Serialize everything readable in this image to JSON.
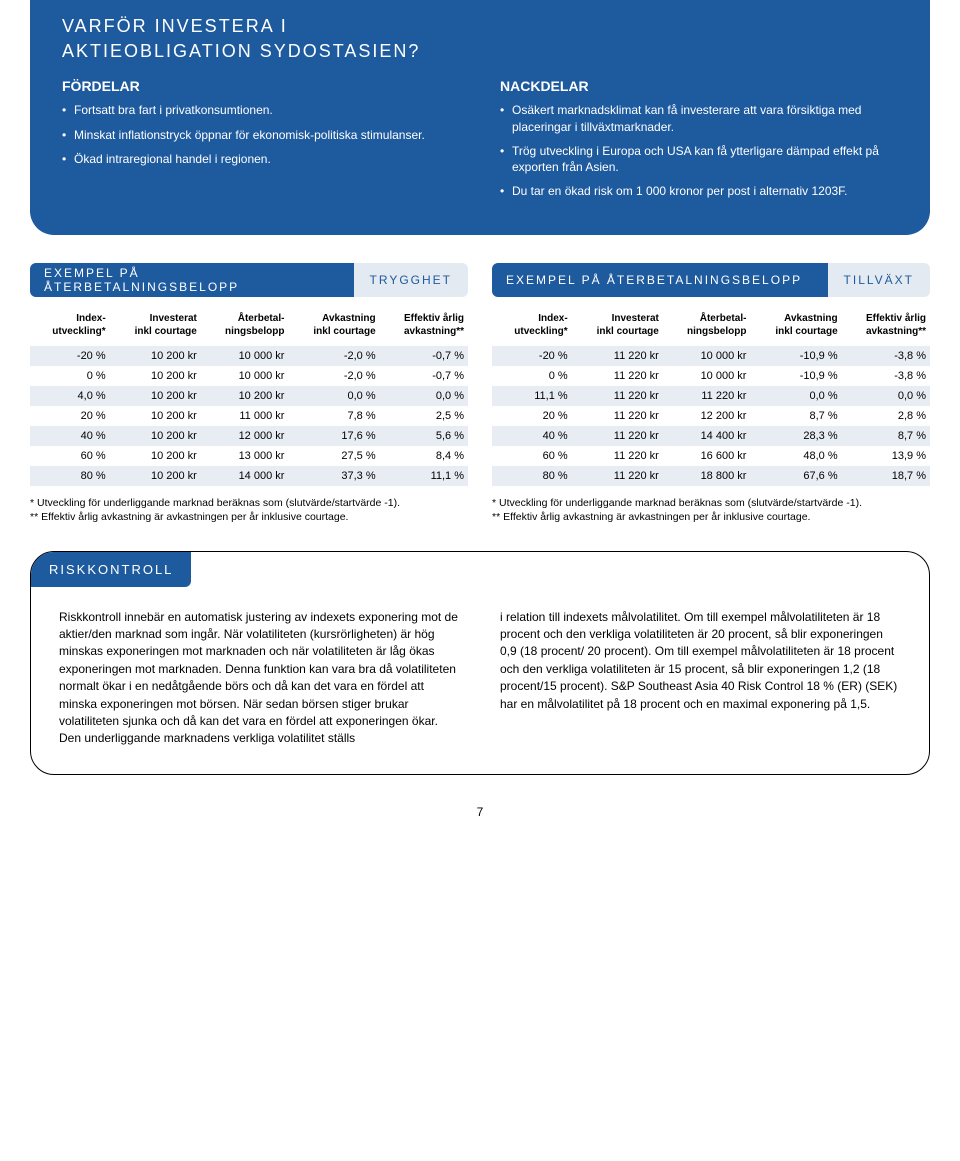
{
  "colors": {
    "brand_blue": "#1e5a9e",
    "light_blue": "#e3eaf1",
    "row_stripe": "#e8edf3",
    "text": "#000000",
    "bg": "#ffffff"
  },
  "hero": {
    "title_line1": "VARFÖR INVESTERA I",
    "title_line2": "AKTIEOBLIGATION SYDOSTASIEN?",
    "fordelar": {
      "heading": "FÖRDELAR",
      "items": [
        "Fortsatt bra fart i privatkonsumtionen.",
        "Minskat inflationstryck öppnar för ekonomisk-politiska stimulanser.",
        "Ökad intraregional handel i regionen."
      ]
    },
    "nackdelar": {
      "heading": "NACKDELAR",
      "items": [
        "Osäkert marknadsklimat kan få investerare att vara försiktiga med placeringar i tillväxtmarknader.",
        "Trög utveckling i Europa och USA kan få ytterligare dämpad effekt på exporten från Asien.",
        "Du tar en ökad risk om 1 000 kronor per post i alternativ 1203F."
      ]
    }
  },
  "tables": {
    "header_title": "EXEMPEL PÅ ÅTERBETALNINGSBELOPP",
    "tag_trygghet": "TRYGGHET",
    "tag_tillvaxt": "TILLVÄXT",
    "columns": [
      {
        "l1": "Index-",
        "l2": "utveckling*"
      },
      {
        "l1": "Investerat",
        "l2": "inkl courtage"
      },
      {
        "l1": "Återbetal-",
        "l2": "ningsbelopp"
      },
      {
        "l1": "Avkastning",
        "l2": "inkl courtage"
      },
      {
        "l1": "Effektiv årlig",
        "l2": "avkastning**"
      }
    ],
    "trygghet_rows": [
      [
        "-20 %",
        "10 200 kr",
        "10 000 kr",
        "-2,0 %",
        "-0,7 %"
      ],
      [
        "0 %",
        "10 200 kr",
        "10 000 kr",
        "-2,0 %",
        "-0,7 %"
      ],
      [
        "4,0 %",
        "10 200 kr",
        "10 200 kr",
        "0,0 %",
        "0,0 %"
      ],
      [
        "20 %",
        "10 200 kr",
        "11 000 kr",
        "7,8 %",
        "2,5 %"
      ],
      [
        "40 %",
        "10 200 kr",
        "12 000 kr",
        "17,6 %",
        "5,6 %"
      ],
      [
        "60 %",
        "10 200 kr",
        "13 000 kr",
        "27,5 %",
        "8,4 %"
      ],
      [
        "80 %",
        "10 200 kr",
        "14 000 kr",
        "37,3 %",
        "11,1 %"
      ]
    ],
    "tillvaxt_rows": [
      [
        "-20 %",
        "11 220 kr",
        "10 000 kr",
        "-10,9 %",
        "-3,8 %"
      ],
      [
        "0 %",
        "11 220 kr",
        "10 000 kr",
        "-10,9 %",
        "-3,8 %"
      ],
      [
        "11,1 %",
        "11 220 kr",
        "11 220 kr",
        "0,0 %",
        "0,0 %"
      ],
      [
        "20 %",
        "11 220 kr",
        "12 200 kr",
        "8,7 %",
        "2,8 %"
      ],
      [
        "40 %",
        "11 220 kr",
        "14 400 kr",
        "28,3 %",
        "8,7 %"
      ],
      [
        "60 %",
        "11 220 kr",
        "16 600 kr",
        "48,0 %",
        "13,9 %"
      ],
      [
        "80 %",
        "11 220 kr",
        "18 800 kr",
        "67,6 %",
        "18,7 %"
      ]
    ],
    "footnote1": "*  Utveckling för underliggande marknad beräknas som (slutvärde/startvärde -1).",
    "footnote2": "** Effektiv årlig avkastning är avkastningen per år inklusive courtage."
  },
  "risk": {
    "title": "RISKKONTROLL",
    "col1": "Riskkontroll innebär en automatisk justering av indexets exponering mot de aktier/den marknad som ingår. När volatiliteten (kursrörligheten) är hög minskas exponeringen mot marknaden och när volatiliteten är låg ökas exponeringen mot marknaden. Denna funktion kan vara bra då volatiliteten normalt ökar i en nedåtgående börs och då kan det vara en fördel att minska exponeringen mot börsen. När sedan börsen stiger brukar volatiliteten sjunka och då kan det vara en fördel att exponeringen ökar. Den underliggande marknadens verkliga volatilitet ställs",
    "col2": "i relation till indexets målvolatilitet. Om till exempel målvolatiliteten är 18 procent och den verkliga volatiliteten är 20 procent, så blir exponeringen 0,9 (18 procent/ 20 procent). Om till exempel målvolatiliteten är 18 procent och den verkliga volatiliteten är 15 procent, så blir exponeringen 1,2 (18 procent/15 procent). S&P Southeast Asia 40 Risk Control 18 % (ER) (SEK) har en målvolatilitet på 18 procent och en maximal exponering på 1,5."
  },
  "page_number": "7"
}
